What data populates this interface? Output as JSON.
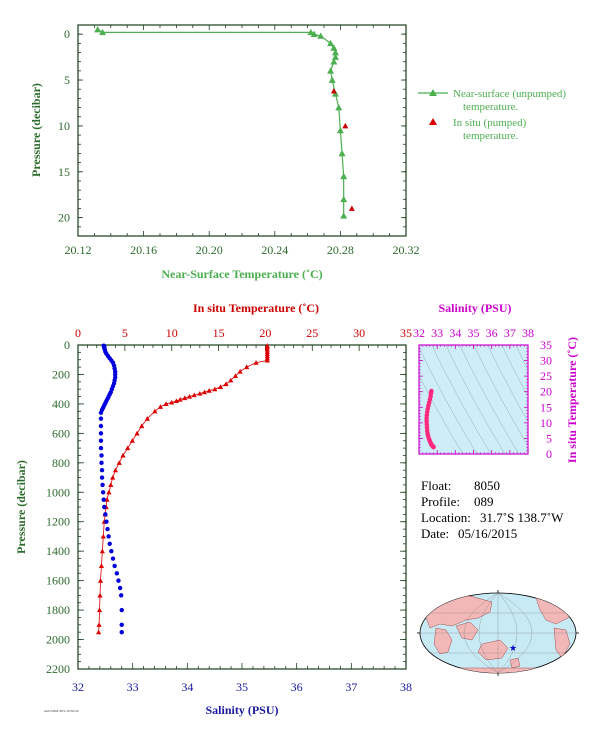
{
  "chart_data": [
    {
      "type": "line",
      "xlabel": "Near-Surface Temperature (˚C)",
      "ylabel": "Pressure (decibar)",
      "xlim": [
        20.12,
        20.32
      ],
      "ylim": [
        22,
        -1
      ],
      "xticks": [
        "20.12",
        "20.16",
        "20.20",
        "20.24",
        "20.28",
        "20.32"
      ],
      "yticks": [
        "0",
        "5",
        "10",
        "15",
        "20"
      ],
      "legend": {
        "placement": "right",
        "entries": [
          {
            "line1": "Near-surface (unpumped)",
            "line2": "temperature."
          },
          {
            "line1": "In situ (pumped)",
            "line2": "temperature."
          }
        ]
      },
      "series": [
        {
          "name": "Near-surface (unpumped) temperature.",
          "color": "#4caf50",
          "marker": "triangle",
          "x": [
            20.132,
            20.135,
            20.262,
            20.264,
            20.268,
            20.274,
            20.276,
            20.277,
            20.277,
            20.276,
            20.274,
            20.275,
            20.277,
            20.279,
            20.28,
            20.281,
            20.282,
            20.282,
            20.282
          ],
          "y": [
            -0.5,
            -0.2,
            -0.2,
            0.0,
            0.2,
            1.0,
            1.5,
            2.0,
            2.5,
            3.0,
            4.0,
            5.0,
            6.5,
            8.0,
            10.5,
            13.0,
            15.5,
            18.0,
            19.8
          ]
        },
        {
          "name": "In situ (pumped) temperature.",
          "color": "#cc0000",
          "marker": "triangle",
          "x": [
            20.276,
            20.283,
            20.287
          ],
          "y": [
            6.2,
            10.0,
            19.0
          ]
        }
      ]
    },
    {
      "type": "scatter",
      "xlabel": "Salinity (PSU)",
      "x2label": "In situ Temperature (˚C)",
      "ylabel": "Pressure (decibar)",
      "xlim": [
        32,
        38
      ],
      "x2lim": [
        0,
        35
      ],
      "ylim": [
        2200,
        0
      ],
      "xticks": [
        "32",
        "33",
        "34",
        "35",
        "36",
        "37",
        "38"
      ],
      "x2ticks": [
        "0",
        "5",
        "10",
        "15",
        "20",
        "25",
        "30",
        "35"
      ],
      "yticks": [
        "0",
        "200",
        "400",
        "600",
        "800",
        "1000",
        "1200",
        "1400",
        "1600",
        "1800",
        "2000",
        "2200"
      ],
      "series": [
        {
          "name": "Salinity",
          "color": "#0000dd",
          "marker": "circle",
          "x": [
            32.47,
            32.48,
            32.48,
            32.49,
            32.5,
            32.52,
            32.55,
            32.58,
            32.61,
            32.64,
            32.66,
            32.67,
            32.68,
            32.68,
            32.68,
            32.67,
            32.66,
            32.64,
            32.62,
            32.6,
            32.58,
            32.56,
            32.54,
            32.52,
            32.5,
            32.48,
            32.46,
            32.44,
            32.42,
            32.42,
            32.42,
            32.42,
            32.42,
            32.42,
            32.43,
            32.43,
            32.44,
            32.44,
            32.45,
            32.46,
            32.47,
            32.48,
            32.5,
            32.52,
            32.54,
            32.56,
            32.58,
            32.61,
            32.64,
            32.67,
            32.71,
            32.74,
            32.77,
            32.79,
            32.8,
            32.8,
            32.8
          ],
          "y": [
            5,
            10,
            20,
            30,
            45,
            60,
            75,
            90,
            105,
            120,
            140,
            160,
            180,
            200,
            220,
            240,
            260,
            280,
            300,
            320,
            335,
            350,
            365,
            380,
            395,
            410,
            425,
            440,
            460,
            500,
            550,
            600,
            650,
            700,
            750,
            800,
            850,
            900,
            950,
            1000,
            1050,
            1100,
            1150,
            1200,
            1250,
            1300,
            1350,
            1400,
            1450,
            1500,
            1550,
            1600,
            1650,
            1700,
            1800,
            1900,
            1950
          ]
        },
        {
          "name": "Temperature",
          "color": "#dd0000",
          "marker": "triangle",
          "x": [
            20.2,
            20.2,
            20.2,
            20.2,
            20.2,
            20.2,
            20.2,
            20.2,
            19.0,
            18.0,
            17.3,
            16.8,
            16.3,
            15.8,
            15.2,
            14.6,
            14.0,
            13.5,
            13.0,
            12.4,
            11.9,
            11.4,
            10.9,
            10.5,
            10.0,
            9.4,
            8.8,
            8.2,
            7.4,
            6.8,
            6.3,
            5.8,
            5.3,
            4.8,
            4.4,
            4.0,
            3.7,
            3.5,
            3.3,
            3.1,
            3.0,
            2.9,
            2.8,
            2.7,
            2.6,
            2.5,
            2.4,
            2.35,
            2.3,
            2.25,
            2.2
          ],
          "y": [
            5,
            15,
            30,
            45,
            60,
            75,
            90,
            105,
            120,
            150,
            180,
            210,
            240,
            265,
            285,
            300,
            310,
            320,
            330,
            340,
            350,
            360,
            370,
            380,
            390,
            400,
            420,
            450,
            500,
            550,
            600,
            650,
            700,
            750,
            800,
            850,
            900,
            950,
            1000,
            1050,
            1100,
            1150,
            1200,
            1300,
            1400,
            1500,
            1600,
            1700,
            1800,
            1900,
            1950
          ]
        }
      ]
    },
    {
      "type": "scatter",
      "xlabel": "Salinity (PSU)",
      "ylabel": "In situ Temperature (˚C)",
      "xlim": [
        32,
        38
      ],
      "ylim": [
        0,
        35
      ],
      "xticks": [
        "32",
        "33",
        "34",
        "35",
        "36",
        "37",
        "38"
      ],
      "yticks": [
        "0",
        "5",
        "10",
        "15",
        "20",
        "25",
        "30",
        "35"
      ],
      "series": [
        {
          "name": "T-S",
          "color": "#ff2a80",
          "marker": "circle",
          "x": [
            32.68,
            32.66,
            32.64,
            32.6,
            32.56,
            32.52,
            32.48,
            32.45,
            32.43,
            32.42,
            32.42,
            32.43,
            32.44,
            32.45,
            32.47,
            32.5,
            32.54,
            32.58,
            32.62,
            32.66,
            32.7,
            32.74,
            32.78,
            32.8
          ],
          "y": [
            20.2,
            19.5,
            18.5,
            17.5,
            16.5,
            15.5,
            14.5,
            13.5,
            12.5,
            11.5,
            10.5,
            9.5,
            8.5,
            7.5,
            6.5,
            5.8,
            5.0,
            4.4,
            3.8,
            3.3,
            2.9,
            2.6,
            2.4,
            2.2
          ]
        }
      ]
    }
  ],
  "info": {
    "float_label": "Float:",
    "float": "8050",
    "profile_label": "Profile:",
    "profile": "089",
    "location_label": "Location:",
    "location": "31.7˚S  138.7˚W",
    "date_label": "Date:",
    "date": "05/16/2015"
  },
  "footer": {
    "code": "AOU/NPOL/RVL 20150516"
  },
  "colors": {
    "plot_bg": "#cdeef8",
    "land": "#f2b8b8",
    "ocean": "#c8eaf5"
  }
}
